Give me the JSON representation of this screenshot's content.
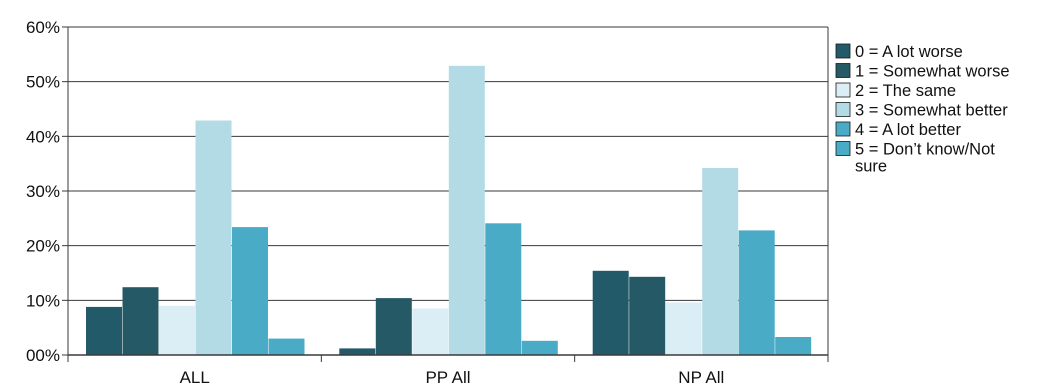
{
  "chart_data": {
    "type": "bar",
    "categories": [
      "ALL",
      "PP All",
      "NP All"
    ],
    "ylim": [
      0,
      60
    ],
    "yticks": [
      "00%",
      "10%",
      "20%",
      "30%",
      "40%",
      "50%",
      "60%"
    ],
    "grid": true,
    "legend_position": "right",
    "series": [
      {
        "name": "0 = A lot worse",
        "color": "#235a6a",
        "values": [
          8.8,
          1.2,
          15.4
        ]
      },
      {
        "name": "1 = Somewhat worse",
        "color": "#265966",
        "values": [
          12.4,
          10.4,
          14.3
        ]
      },
      {
        "name": "2 = The same",
        "color": "#dbeef5",
        "values": [
          9.0,
          8.5,
          9.6
        ]
      },
      {
        "name": "3 = Somewhat better",
        "color": "#b3dbe5",
        "values": [
          42.9,
          52.9,
          34.2
        ]
      },
      {
        "name": "4 = A lot better",
        "color": "#4aabc6",
        "values": [
          23.4,
          24.1,
          22.8
        ]
      },
      {
        "name": "5 = Don’t know/Not sure",
        "legend_lines": [
          "5 = Don’t know/Not",
          "sure"
        ],
        "color": "#4aabc6",
        "values": [
          3.0,
          2.6,
          3.3
        ]
      }
    ]
  }
}
